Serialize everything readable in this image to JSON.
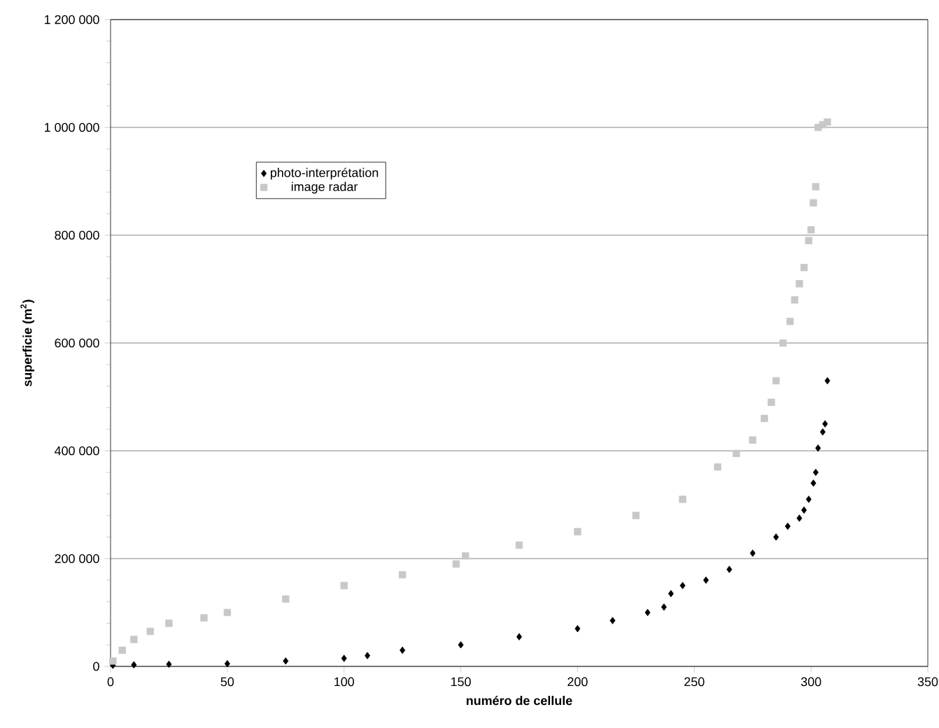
{
  "chart_data": {
    "type": "scatter",
    "xlabel": "numéro de cellule",
    "ylabel": "superficie (m$^{2}$)",
    "xlim": [
      0,
      350
    ],
    "xticks": [
      0,
      50,
      100,
      150,
      200,
      250,
      300,
      350
    ],
    "ylim": [
      0,
      1200000
    ],
    "yticks": [
      0,
      {
        "value": 200000,
        "label": "200 000"
      },
      {
        "value": 400000,
        "label": "400 000"
      },
      {
        "value": 600000,
        "label": "600 000"
      },
      {
        "value": 800000,
        "label": "800 000"
      },
      {
        "value": 1000000,
        "label": "1 000 000"
      },
      {
        "value": 1200000,
        "label": "1 200 000"
      }
    ],
    "grid": "y",
    "legend": "top left",
    "series": [
      {
        "name": "photo-interprétation",
        "color": "#000000",
        "marker": "diamond",
        "x": [
          1,
          10,
          25,
          50,
          75,
          100,
          110,
          125,
          150,
          175,
          200,
          215,
          230,
          237,
          240,
          245,
          255,
          265,
          275,
          285,
          290,
          295,
          297,
          299,
          301,
          302,
          303,
          305,
          306,
          307
        ],
        "values": [
          2000,
          3000,
          4000,
          5000,
          10000,
          15000,
          20000,
          30000,
          40000,
          55000,
          70000,
          85000,
          100000,
          110000,
          135000,
          150000,
          160000,
          180000,
          210000,
          240000,
          260000,
          275000,
          290000,
          310000,
          340000,
          360000,
          405000,
          435000,
          450000,
          530000
        ]
      },
      {
        "name": "image radar",
        "color": "#c8c8c8",
        "marker": "square",
        "x": [
          1,
          5,
          10,
          17,
          25,
          40,
          50,
          75,
          100,
          125,
          148,
          152,
          175,
          200,
          225,
          245,
          260,
          268,
          275,
          280,
          283,
          285,
          288,
          291,
          293,
          295,
          297,
          299,
          300,
          301,
          302,
          303,
          305,
          307
        ],
        "values": [
          10000,
          30000,
          50000,
          65000,
          80000,
          90000,
          100000,
          125000,
          150000,
          170000,
          190000,
          205000,
          225000,
          250000,
          280000,
          310000,
          370000,
          395000,
          420000,
          460000,
          490000,
          530000,
          600000,
          640000,
          680000,
          710000,
          740000,
          790000,
          810000,
          860000,
          890000,
          1000000,
          1005000,
          1010000
        ]
      }
    ]
  }
}
